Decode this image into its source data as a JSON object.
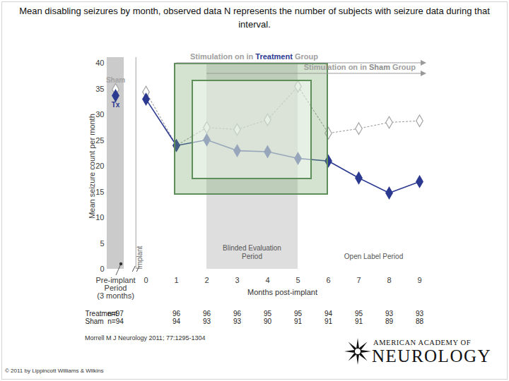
{
  "chart_data": {
    "type": "line",
    "title": "Mean disabling seizures by month, observed data N represents the number of subjects with seizure data during that interval.",
    "categories": [
      "Pre-implant\nPeriod\n(3 months)",
      "0",
      "1",
      "2",
      "3",
      "4",
      "5",
      "6",
      "7",
      "8",
      "9"
    ],
    "x_label": "Months post-implant",
    "y_label": "Mean seizure count per month",
    "ylim": [
      0,
      40
    ],
    "yticks": [
      0,
      5,
      10,
      15,
      20,
      25,
      30,
      35,
      40
    ],
    "series": [
      {
        "name": "Sham",
        "color": "#a3a3a3",
        "marker": "open_diamond",
        "line_style": "dotted",
        "values": [
          34.9,
          34.4,
          24.0,
          27.5,
          27.1,
          29.0,
          35.5,
          26.4,
          27.3,
          28.5,
          28.8
        ]
      },
      {
        "name": "Tx",
        "color": "#2b3990",
        "marker": "diamond",
        "line_style": "solid",
        "values": [
          33.7,
          33.0,
          24.0,
          25.1,
          23.0,
          22.8,
          21.5,
          21.0,
          17.7,
          14.8,
          17.0
        ]
      }
    ],
    "stimulation": [
      {
        "text": "Stimulation on in Treatment Group",
        "emphasis": "Treatment",
        "color": "#2b3990",
        "from": "1"
      },
      {
        "text": "Stimulation on in Sham Group",
        "emphasis": "Sham",
        "color": "#8a8a8a",
        "from": "2"
      }
    ],
    "implant_label": "Implant",
    "blinded_period": {
      "label": "Blinded Evaluation\nPeriod",
      "from": "2",
      "to": "5"
    },
    "open_label_period": {
      "label": "Open Label Period",
      "from": "6",
      "to": "9"
    },
    "n_counts": [
      {
        "name": "Treatment",
        "values": [
          97,
          null,
          96,
          96,
          96,
          95,
          95,
          94,
          95,
          93,
          93
        ],
        "value_labels": [
          "n=97",
          null,
          "96",
          "96",
          "96",
          "95",
          "95",
          "94",
          "95",
          "93",
          "93"
        ]
      },
      {
        "name": "Sham",
        "values": [
          94,
          null,
          94,
          93,
          93,
          90,
          91,
          91,
          91,
          89,
          88
        ],
        "value_labels": [
          "n=94",
          null,
          "94",
          "93",
          "93",
          "90",
          "91",
          "91",
          "91",
          "89",
          "88"
        ]
      }
    ],
    "source": "Morrell M J Neurology 2011; 77:1295-1304"
  },
  "copyright": "© 2011 by Lippincott Williams & Wilkins",
  "logo": [
    "AMERICAN ACADEMY OF",
    "NEUROLOGY"
  ]
}
